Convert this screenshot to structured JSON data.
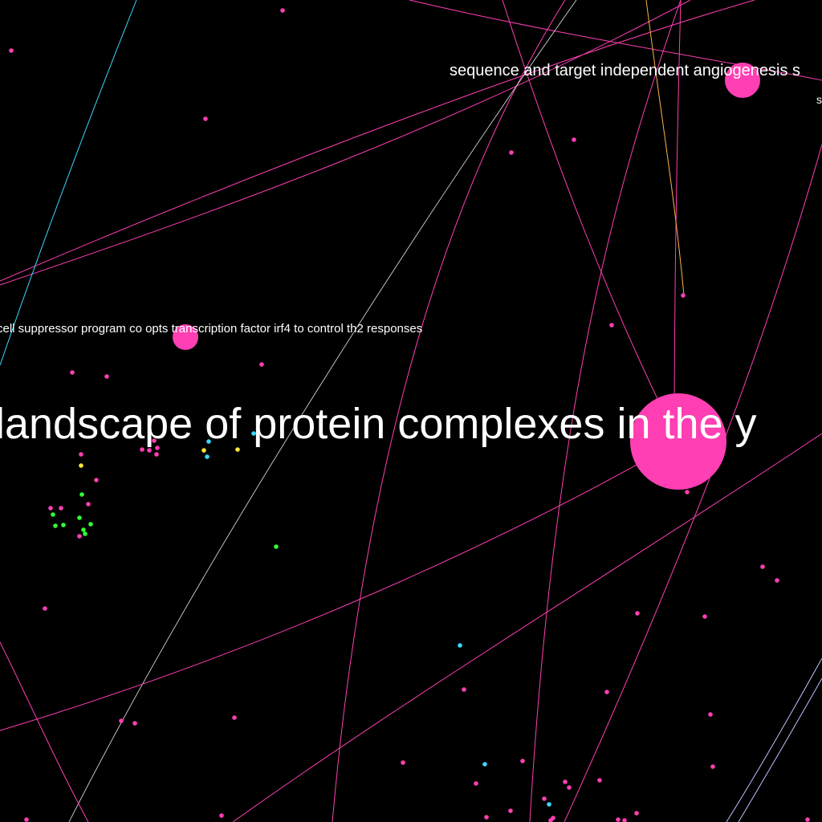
{
  "graph": {
    "background_color": "#000000",
    "colors": {
      "magenta": "#ff3fb3",
      "cyan": "#39d8ff",
      "yellow": "#ffe33a",
      "green": "#32ff32",
      "white": "#e8e8e8",
      "orange": "#ffb24a",
      "lavender": "#bfbfff"
    },
    "labels": {
      "large": "landscape of protein complexes in the y",
      "medium": "sequence and target independent angiogenesis s",
      "small": "s",
      "mid": "cell suppressor program co opts transcription factor irf4 to control th2 responses"
    }
  }
}
